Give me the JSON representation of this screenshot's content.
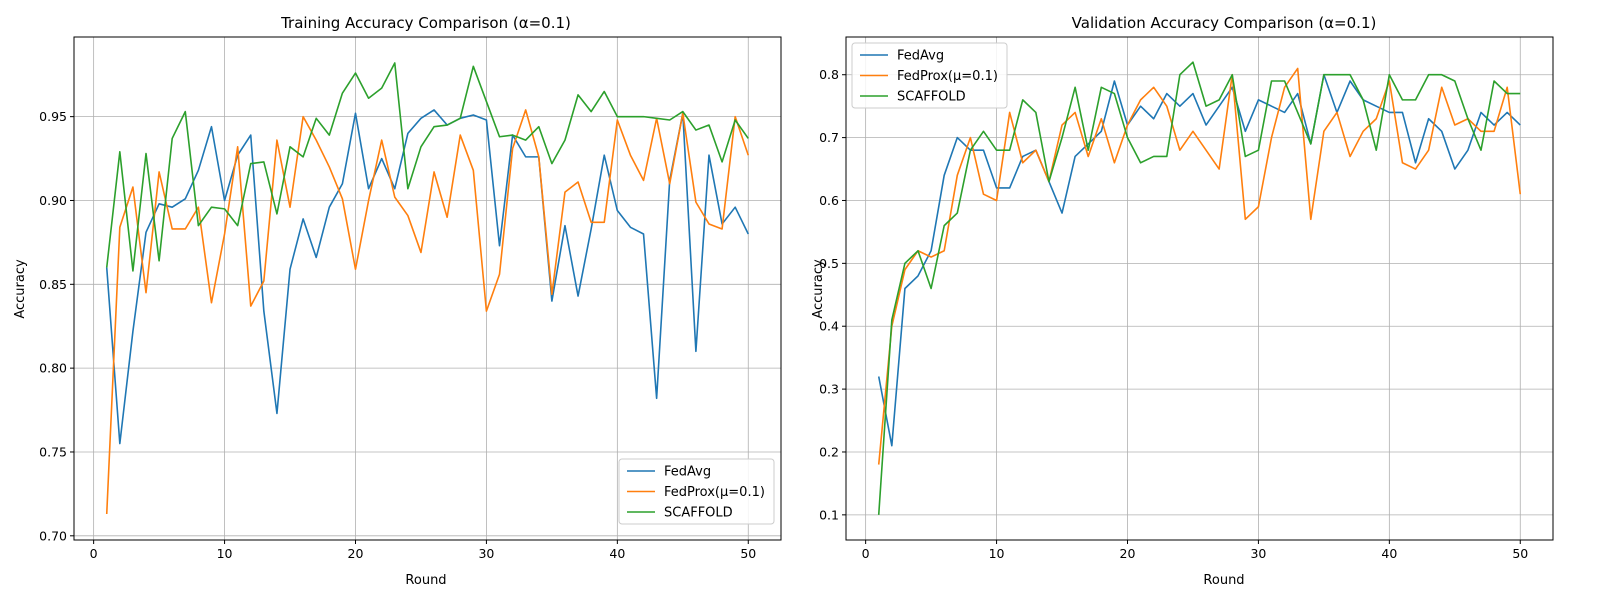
{
  "chart_data": [
    {
      "type": "line",
      "title": "Training Accuracy Comparison (α=0.1)",
      "xlabel": "Round",
      "ylabel": "Accuracy",
      "xlim": [
        -1.5,
        52.5
      ],
      "ylim": [
        0.6975,
        0.9975
      ],
      "xticks": [
        0,
        10,
        20,
        30,
        40,
        50
      ],
      "yticks": [
        0.7,
        0.75,
        0.8,
        0.85,
        0.9,
        0.95
      ],
      "ytick_labels": [
        "0.70",
        "0.75",
        "0.80",
        "0.85",
        "0.90",
        "0.95"
      ],
      "grid": true,
      "legend_position": "lower-right",
      "x": [
        1,
        2,
        3,
        4,
        5,
        6,
        7,
        8,
        9,
        10,
        11,
        12,
        13,
        14,
        15,
        16,
        17,
        18,
        19,
        20,
        21,
        22,
        23,
        24,
        25,
        26,
        27,
        28,
        29,
        30,
        31,
        32,
        33,
        34,
        35,
        36,
        37,
        38,
        39,
        40,
        41,
        42,
        43,
        44,
        45,
        46,
        47,
        48,
        49,
        50
      ],
      "series": [
        {
          "name": "FedAvg",
          "color": "#1f77b4",
          "values": [
            0.86,
            0.755,
            0.822,
            0.881,
            0.898,
            0.896,
            0.901,
            0.918,
            0.944,
            0.9,
            0.927,
            0.939,
            0.834,
            0.773,
            0.859,
            0.889,
            0.866,
            0.896,
            0.91,
            0.952,
            0.907,
            0.925,
            0.907,
            0.94,
            0.949,
            0.954,
            0.945,
            0.949,
            0.951,
            0.948,
            0.873,
            0.939,
            0.926,
            0.926,
            0.84,
            0.885,
            0.843,
            0.883,
            0.927,
            0.894,
            0.884,
            0.88,
            0.782,
            0.912,
            0.952,
            0.81,
            0.927,
            0.886,
            0.896,
            0.88
          ]
        },
        {
          "name": "FedProx(μ=0.1)",
          "color": "#ff7f0e",
          "values": [
            0.713,
            0.884,
            0.908,
            0.845,
            0.917,
            0.883,
            0.883,
            0.896,
            0.839,
            0.88,
            0.932,
            0.837,
            0.852,
            0.936,
            0.896,
            0.95,
            0.936,
            0.92,
            0.901,
            0.859,
            0.9,
            0.936,
            0.902,
            0.891,
            0.869,
            0.917,
            0.89,
            0.939,
            0.918,
            0.834,
            0.856,
            0.931,
            0.954,
            0.926,
            0.844,
            0.905,
            0.911,
            0.887,
            0.887,
            0.948,
            0.927,
            0.912,
            0.949,
            0.91,
            0.952,
            0.899,
            0.886,
            0.883,
            0.95,
            0.927
          ]
        },
        {
          "name": "SCAFFOLD",
          "color": "#2ca02c",
          "values": [
            0.86,
            0.929,
            0.858,
            0.928,
            0.864,
            0.937,
            0.953,
            0.885,
            0.896,
            0.895,
            0.885,
            0.922,
            0.923,
            0.892,
            0.932,
            0.926,
            0.949,
            0.939,
            0.964,
            0.976,
            0.961,
            0.967,
            0.982,
            0.907,
            0.932,
            0.944,
            0.945,
            0.949,
            0.98,
            0.959,
            0.938,
            0.939,
            0.936,
            0.944,
            0.922,
            0.936,
            0.963,
            0.953,
            0.965,
            0.95,
            0.95,
            0.95,
            0.949,
            0.948,
            0.953,
            0.942,
            0.945,
            0.923,
            0.948,
            0.937
          ]
        }
      ]
    },
    {
      "type": "line",
      "title": "Validation Accuracy Comparison (α=0.1)",
      "xlabel": "Round",
      "ylabel": "Accuracy",
      "xlim": [
        -1.5,
        52.5
      ],
      "ylim": [
        0.06,
        0.86
      ],
      "xticks": [
        0,
        10,
        20,
        30,
        40,
        50
      ],
      "yticks": [
        0.1,
        0.2,
        0.3,
        0.4,
        0.5,
        0.6,
        0.7,
        0.8
      ],
      "ytick_labels": [
        "0.1",
        "0.2",
        "0.3",
        "0.4",
        "0.5",
        "0.6",
        "0.7",
        "0.8"
      ],
      "grid": true,
      "legend_position": "upper-left",
      "x": [
        1,
        2,
        3,
        4,
        5,
        6,
        7,
        8,
        9,
        10,
        11,
        12,
        13,
        14,
        15,
        16,
        17,
        18,
        19,
        20,
        21,
        22,
        23,
        24,
        25,
        26,
        27,
        28,
        29,
        30,
        31,
        32,
        33,
        34,
        35,
        36,
        37,
        38,
        39,
        40,
        41,
        42,
        43,
        44,
        45,
        46,
        47,
        48,
        49,
        50
      ],
      "series": [
        {
          "name": "FedAvg",
          "color": "#1f77b4",
          "values": [
            0.32,
            0.21,
            0.46,
            0.48,
            0.52,
            0.64,
            0.7,
            0.68,
            0.68,
            0.62,
            0.62,
            0.67,
            0.68,
            0.63,
            0.58,
            0.67,
            0.69,
            0.71,
            0.79,
            0.72,
            0.75,
            0.73,
            0.77,
            0.75,
            0.77,
            0.72,
            0.75,
            0.78,
            0.71,
            0.76,
            0.75,
            0.74,
            0.77,
            0.69,
            0.8,
            0.74,
            0.79,
            0.76,
            0.75,
            0.74,
            0.74,
            0.66,
            0.73,
            0.71,
            0.65,
            0.68,
            0.74,
            0.72,
            0.74,
            0.72
          ]
        },
        {
          "name": "FedProx(μ=0.1)",
          "color": "#ff7f0e",
          "values": [
            0.18,
            0.4,
            0.49,
            0.52,
            0.51,
            0.52,
            0.64,
            0.7,
            0.61,
            0.6,
            0.74,
            0.66,
            0.68,
            0.63,
            0.72,
            0.74,
            0.67,
            0.73,
            0.66,
            0.72,
            0.76,
            0.78,
            0.75,
            0.68,
            0.71,
            0.68,
            0.65,
            0.8,
            0.57,
            0.59,
            0.7,
            0.78,
            0.81,
            0.57,
            0.71,
            0.74,
            0.67,
            0.71,
            0.73,
            0.79,
            0.66,
            0.65,
            0.68,
            0.78,
            0.72,
            0.73,
            0.71,
            0.71,
            0.78,
            0.61
          ]
        },
        {
          "name": "SCAFFOLD",
          "color": "#2ca02c",
          "values": [
            0.1,
            0.41,
            0.5,
            0.52,
            0.46,
            0.56,
            0.58,
            0.68,
            0.71,
            0.68,
            0.68,
            0.76,
            0.74,
            0.63,
            0.7,
            0.78,
            0.68,
            0.78,
            0.77,
            0.7,
            0.66,
            0.67,
            0.67,
            0.8,
            0.82,
            0.75,
            0.76,
            0.8,
            0.67,
            0.68,
            0.79,
            0.79,
            0.74,
            0.69,
            0.8,
            0.8,
            0.8,
            0.76,
            0.68,
            0.8,
            0.76,
            0.76,
            0.8,
            0.8,
            0.79,
            0.73,
            0.68,
            0.79,
            0.77,
            0.77
          ]
        }
      ]
    }
  ]
}
